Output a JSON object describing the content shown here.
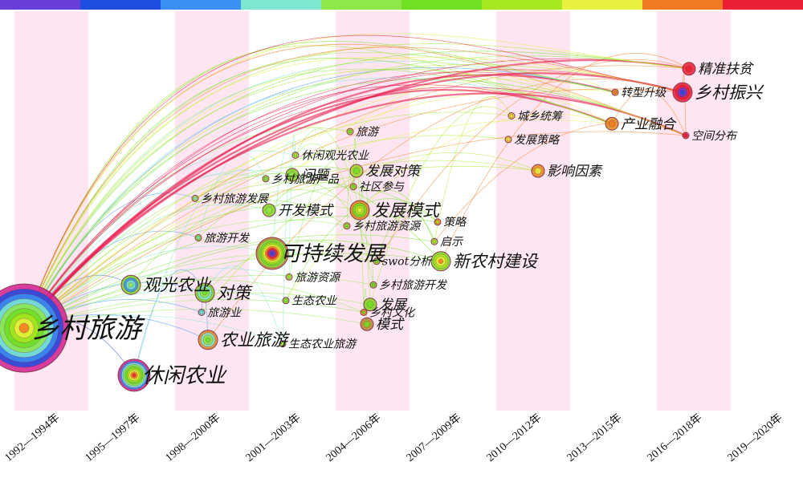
{
  "timeline": {
    "bands": [
      "#6a3fd9",
      "#1f4fe0",
      "#3a8ff0",
      "#7de8d2",
      "#8ee84a",
      "#6fe022",
      "#a8e820",
      "#e8f040",
      "#f07a22",
      "#ea2034"
    ],
    "periods": [
      "1992—1994年",
      "1995—1997年",
      "1998—2000年",
      "2001—2003年",
      "2004—2006年",
      "2007—2009年",
      "2010—2012年",
      "2013—2015年",
      "2016—2018年",
      "2019—2020年"
    ]
  },
  "keywords": [
    {
      "label": "乡村旅游",
      "period": 0,
      "row": 0.79,
      "size": 5,
      "color": "#d21f8e"
    },
    {
      "label": "休闲农业",
      "period": 1,
      "row": 0.91,
      "size": 4,
      "color": "#d21f8e"
    },
    {
      "label": "观光农业",
      "period": 1,
      "row": 0.68,
      "size": 3,
      "color": "#7ed321"
    },
    {
      "label": "农业旅游",
      "period": 2,
      "row": 0.82,
      "size": 3,
      "color": "#e0861a"
    },
    {
      "label": "对策",
      "period": 2,
      "row": 0.7,
      "size": 3,
      "color": "#7ed321"
    },
    {
      "label": "旅游业",
      "period": 2,
      "row": 0.75,
      "size": 1,
      "color": "#59c9c4"
    },
    {
      "label": "旅游开发",
      "period": 2,
      "row": 0.56,
      "size": 1,
      "color": "#7ed321"
    },
    {
      "label": "乡村旅游发展",
      "period": 2,
      "row": 0.46,
      "size": 1,
      "color": "#a0d62e"
    },
    {
      "label": "可持续发展",
      "period": 3,
      "row": 0.6,
      "size": 4,
      "color": "#b5852a"
    },
    {
      "label": "开发模式",
      "period": 3,
      "row": 0.49,
      "size": 2,
      "color": "#7ed321"
    },
    {
      "label": "乡村旅游产品",
      "period": 3,
      "row": 0.41,
      "size": 1,
      "color": "#7ed321"
    },
    {
      "label": "休闲观光农业",
      "period": 3,
      "row": 0.35,
      "size": 1,
      "color": "#a0d62e"
    },
    {
      "label": "问题",
      "period": 3,
      "row": 0.4,
      "size": 2,
      "color": "#7ed321"
    },
    {
      "label": "旅游资源",
      "period": 3,
      "row": 0.66,
      "size": 1,
      "color": "#a0d62e"
    },
    {
      "label": "生态农业",
      "period": 3,
      "row": 0.72,
      "size": 1,
      "color": "#7ed321"
    },
    {
      "label": "生态农业旅游",
      "period": 3,
      "row": 0.83,
      "size": 1,
      "color": "#a0d62e"
    },
    {
      "label": "发展模式",
      "period": 4,
      "row": 0.49,
      "size": 3,
      "color": "#e0861a"
    },
    {
      "label": "发展对策",
      "period": 4,
      "row": 0.39,
      "size": 2,
      "color": "#a0d62e"
    },
    {
      "label": "社区参与",
      "period": 4,
      "row": 0.43,
      "size": 1,
      "color": "#a0d62e"
    },
    {
      "label": "旅游",
      "period": 4,
      "row": 0.29,
      "size": 1,
      "color": "#a0d62e"
    },
    {
      "label": "乡村旅游资源",
      "period": 4,
      "row": 0.53,
      "size": 1,
      "color": "#a0d62e"
    },
    {
      "label": "swot分析",
      "period": 4,
      "row": 0.62,
      "size": 1,
      "color": "#7ed321"
    },
    {
      "label": "乡村旅游开发",
      "period": 4,
      "row": 0.68,
      "size": 1,
      "color": "#7ed321"
    },
    {
      "label": "发展",
      "period": 4,
      "row": 0.73,
      "size": 2,
      "color": "#7ed321"
    },
    {
      "label": "模式",
      "period": 4,
      "row": 0.78,
      "size": 2,
      "color": "#b5852a"
    },
    {
      "label": "乡村文化",
      "period": 4,
      "row": 0.75,
      "size": 1,
      "color": "#e0861a"
    },
    {
      "label": "新农村建设",
      "period": 5,
      "row": 0.62,
      "size": 3,
      "color": "#7ed321"
    },
    {
      "label": "策略",
      "period": 5,
      "row": 0.52,
      "size": 1,
      "color": "#e0861a"
    },
    {
      "label": "启示",
      "period": 5,
      "row": 0.57,
      "size": 1,
      "color": "#a0d62e"
    },
    {
      "label": "城乡统筹",
      "period": 6,
      "row": 0.25,
      "size": 1,
      "color": "#e8c030"
    },
    {
      "label": "发展策略",
      "period": 6,
      "row": 0.31,
      "size": 1,
      "color": "#e8c030"
    },
    {
      "label": "影响因素",
      "period": 6,
      "row": 0.39,
      "size": 2,
      "color": "#e0861a"
    },
    {
      "label": "转型升级",
      "period": 7,
      "row": 0.19,
      "size": 1,
      "color": "#e0861a"
    },
    {
      "label": "产业融合",
      "period": 7,
      "row": 0.27,
      "size": 2,
      "color": "#e0861a"
    },
    {
      "label": "精准扶贫",
      "period": 8,
      "row": 0.13,
      "size": 2,
      "color": "#ea2034"
    },
    {
      "label": "空间分布",
      "period": 8,
      "row": 0.3,
      "size": 1,
      "color": "#ea2034"
    },
    {
      "label": "乡村振兴",
      "period": 8,
      "row": 0.19,
      "size": 3,
      "color": "#ea2034"
    }
  ]
}
